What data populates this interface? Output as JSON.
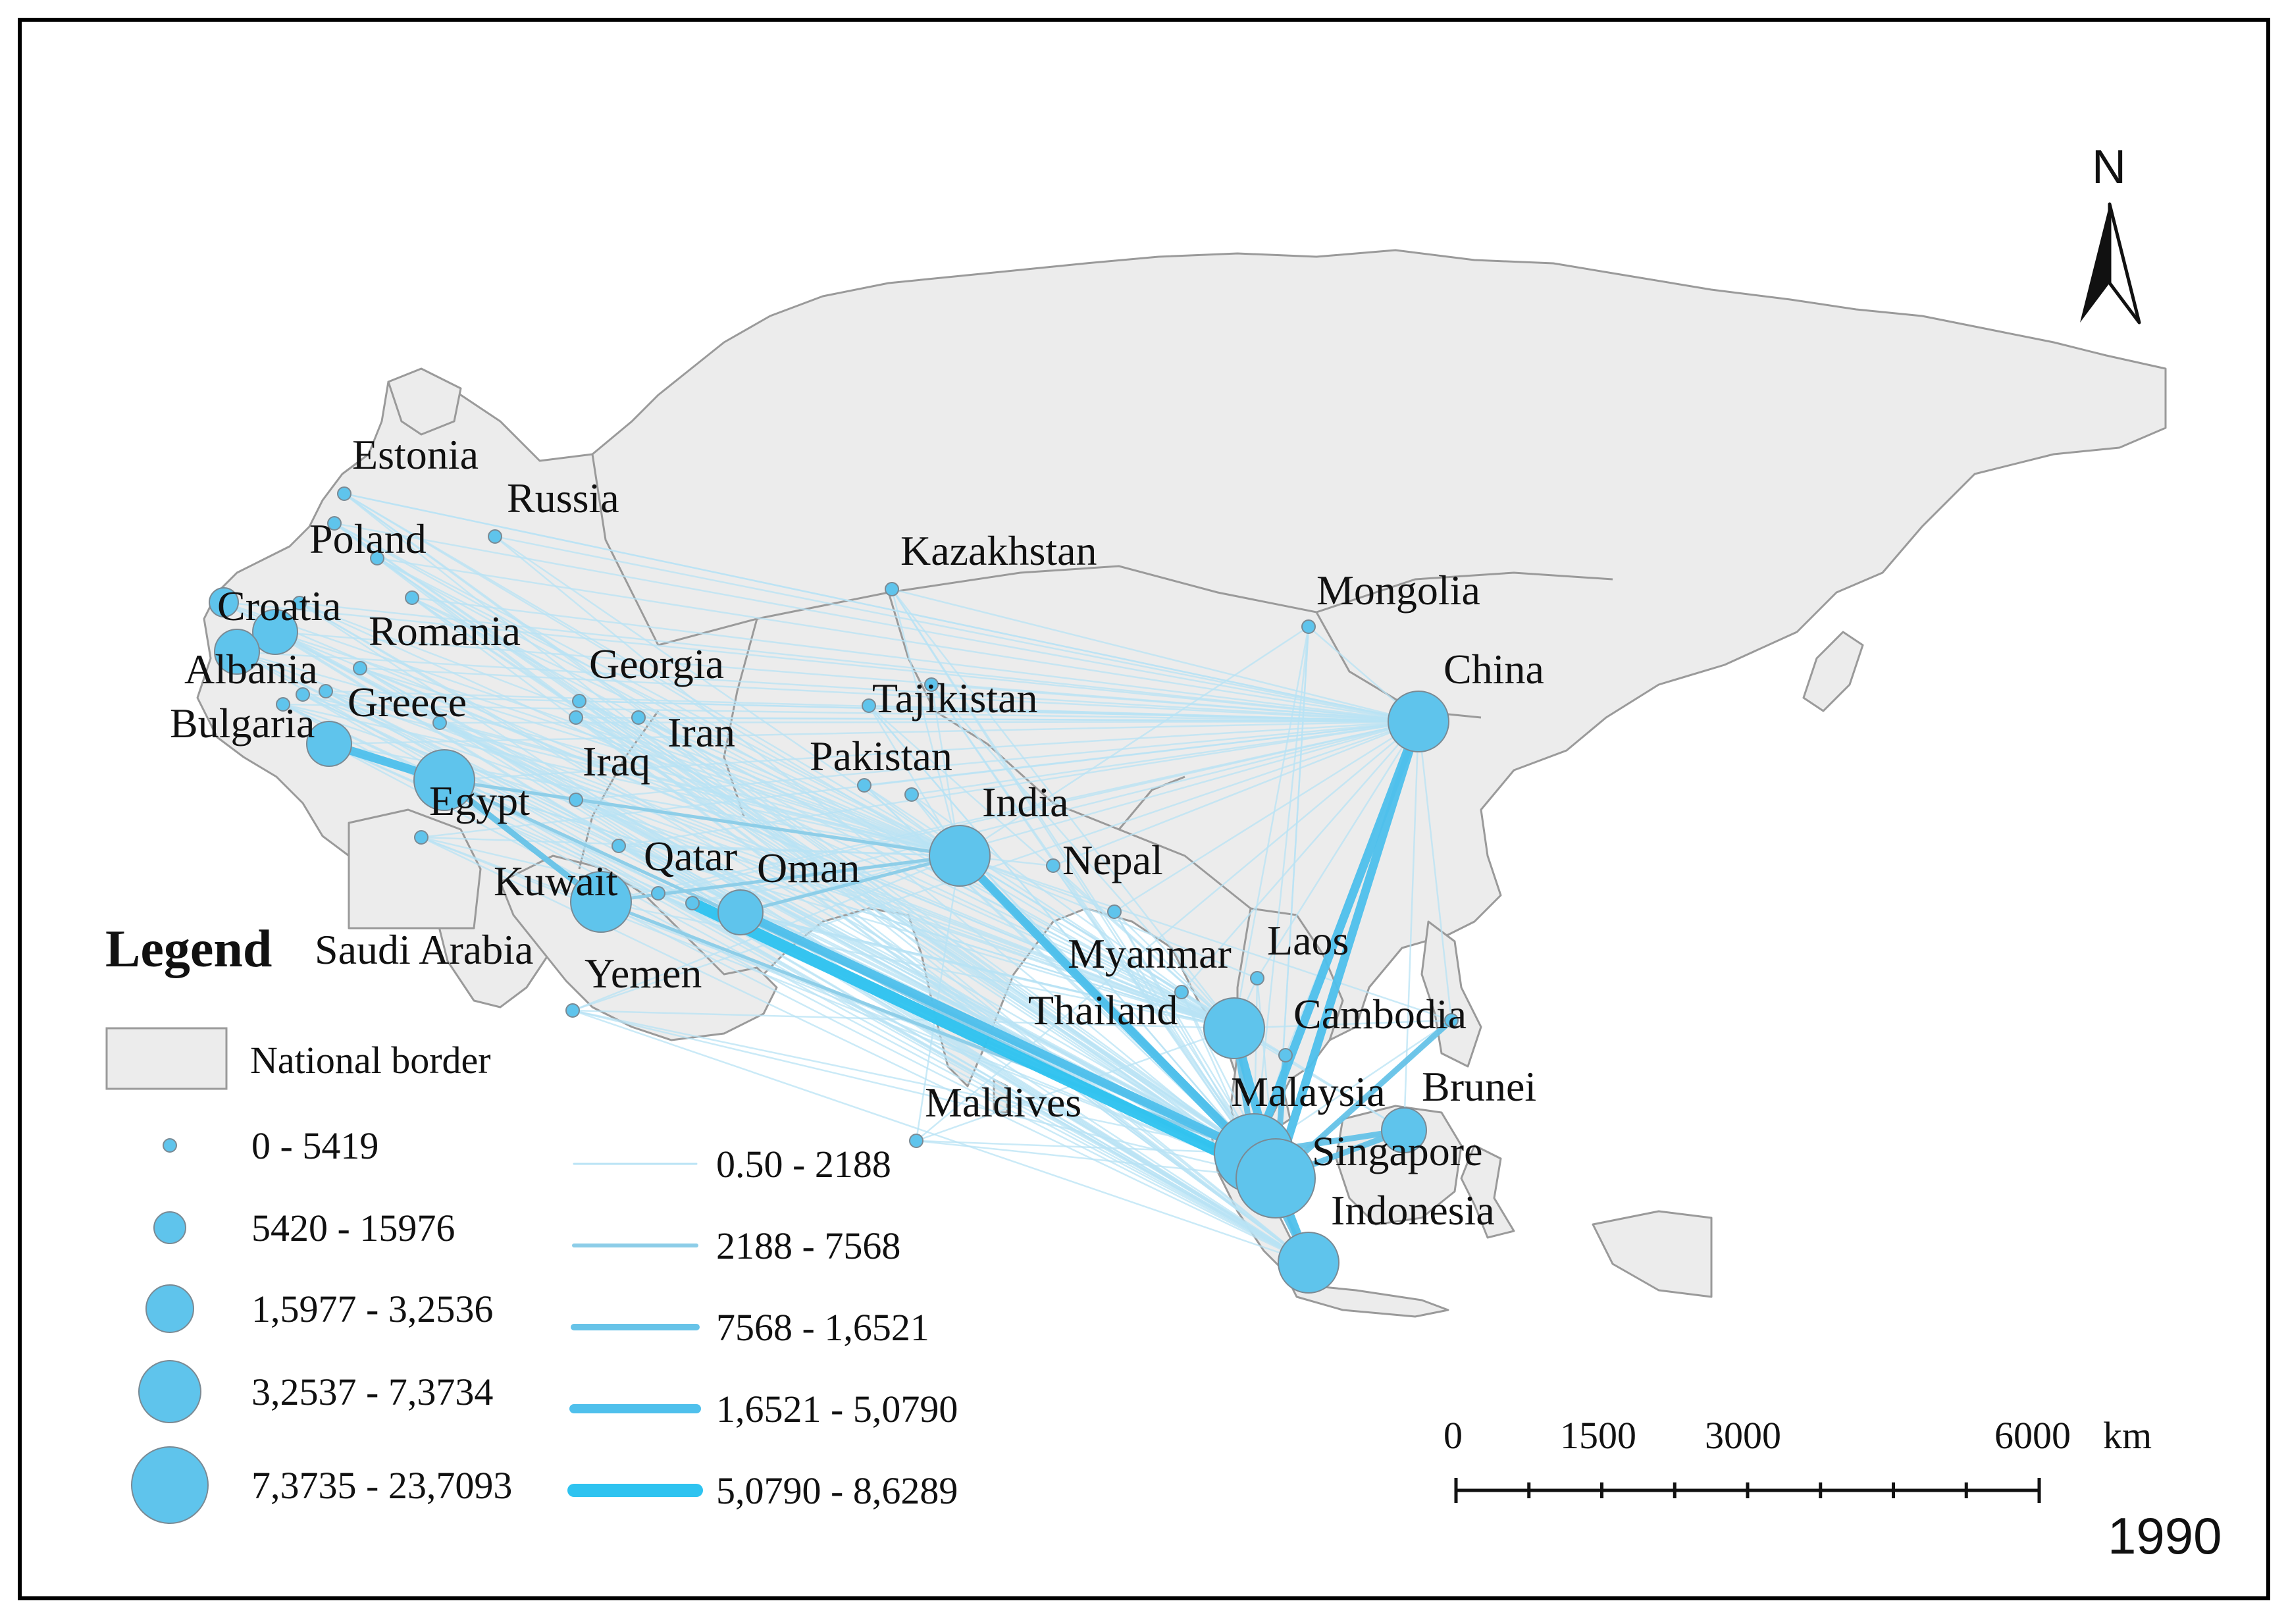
{
  "year": "1990",
  "north_label": "N",
  "legend": {
    "title": "Legend",
    "border_label": "National border",
    "node_classes": [
      "0 - 5419",
      "5420 - 15976",
      "1,5977 - 3,2536",
      "3,2537 - 7,3734",
      "7,3735 - 23,7093"
    ],
    "flow_classes": [
      "0.50 - 2188",
      "2188 - 7568",
      "7568 - 1,6521",
      "1,6521 - 5,0790",
      "5,0790 - 8,6289"
    ]
  },
  "scale_bar": {
    "ticks": [
      "0",
      "1500",
      "3000",
      "6000"
    ],
    "unit": "km"
  },
  "colors": {
    "land": "#ececec",
    "border": "#9a9a9a",
    "node": "#5fc4ec",
    "node_stroke": "#7a8a94",
    "flow": "#5bc8ee"
  },
  "countries": {
    "estonia": "Estonia",
    "russia": "Russia",
    "poland": "Poland",
    "croatia": "Croatia",
    "romania": "Romania",
    "albania": "Albania",
    "greece": "Greece",
    "bulgaria": "Bulgaria",
    "georgia": "Georgia",
    "iran": "Iran",
    "iraq": "Iraq",
    "egypt": "Egypt",
    "kuwait": "Kuwait",
    "qatar": "Qatar",
    "oman": "Oman",
    "saudi_arabia": "Saudi Arabia",
    "yemen": "Yemen",
    "kazakhstan": "Kazakhstan",
    "mongolia": "Mongolia",
    "china": "China",
    "tajikistan": "Tajikistan",
    "pakistan": "Pakistan",
    "india": "India",
    "nepal": "Nepal",
    "myanmar": "Myanmar",
    "laos": "Laos",
    "thailand": "Thailand",
    "cambodia": "Cambodia",
    "malaysia": "Malaysia",
    "brunei": "Brunei",
    "singapore": "Singapore",
    "indonesia": "Indonesia",
    "maldives": "Maldives"
  }
}
